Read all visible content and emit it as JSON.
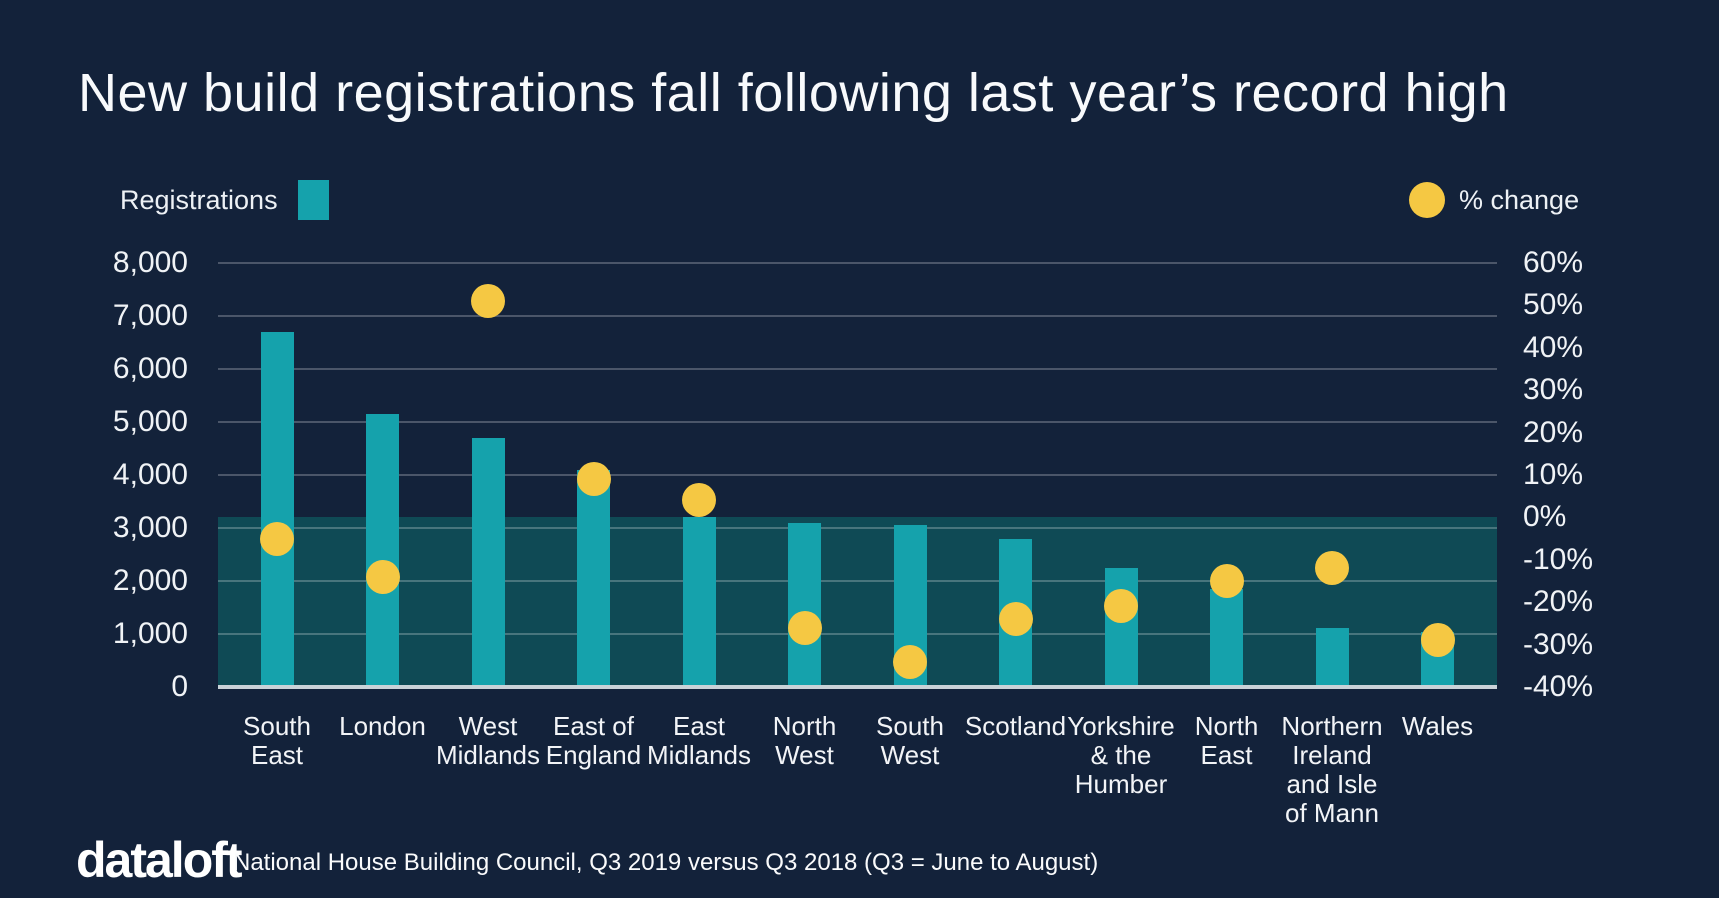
{
  "page": {
    "background": "#13223A"
  },
  "title": {
    "text": "New build registrations fall following last year’s record high"
  },
  "legend": {
    "registrations_label": "Registrations",
    "pct_change_label": "% change",
    "bar_color": "#15A2AC",
    "dot_color": "#F5C843"
  },
  "footer": {
    "logo_text": "dataloft",
    "source_text": "National House Building Council, Q3 2019 versus Q3 2018 (Q3 = June to August)"
  },
  "chart_data": {
    "type": "bar",
    "subtype": "dual-axis bar + scatter",
    "title": "New build registrations fall following last year’s record high",
    "categories": [
      "South East",
      "London",
      "West Midlands",
      "East of England",
      "East Midlands",
      "North West",
      "South West",
      "Scotland",
      "Yorkshire & the Humber",
      "North East",
      "Northern Ireland and Isle of Mann",
      "Wales"
    ],
    "category_tick_labels": [
      "South\nEast",
      "London",
      "West\nMidlands",
      "East of\nEngland",
      "East\nMidlands",
      "North\nWest",
      "South\nWest",
      "Scotland",
      "Yorkshire\n& the\nHumber",
      "North\nEast",
      "Northern\nIreland\nand Isle\nof Mann",
      "Wales"
    ],
    "series": [
      {
        "name": "Registrations",
        "type": "bar",
        "axis": "left",
        "color": "#15A2AC",
        "values": [
          6700,
          5150,
          4700,
          4100,
          3200,
          3100,
          3050,
          2800,
          2250,
          1850,
          1120,
          1030
        ]
      },
      {
        "name": "% change",
        "type": "scatter",
        "axis": "right",
        "color": "#F5C843",
        "values": [
          -5,
          -14,
          51,
          9,
          4,
          -26,
          -34,
          -24,
          -21,
          -15,
          -12,
          -29
        ]
      }
    ],
    "left_axis": {
      "min": 0,
      "max": 8000,
      "tick_labels": [
        "8,000",
        "7,000",
        "6,000",
        "5,000",
        "4,000",
        "3,000",
        "2,000",
        "1,000",
        "0"
      ]
    },
    "right_axis": {
      "min": -40,
      "max": 60,
      "tick_labels": [
        "60%",
        "50%",
        "40%",
        "30%",
        "20%",
        "10%",
        "0%",
        "-10%",
        "-20%",
        "-30%",
        "-40%"
      ]
    },
    "shaded_band": {
      "from_right_axis": 0,
      "to_right_axis": -40,
      "color": "#0F4A55"
    },
    "grid": true,
    "gridline_color": "rgba(255,255,255,0.24)",
    "legend_position": "top"
  }
}
